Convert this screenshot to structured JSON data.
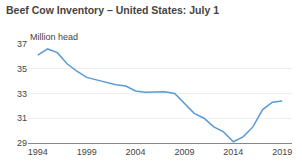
{
  "chart_data": {
    "type": "line",
    "title": "Beef Cow Inventory – United States: July 1",
    "ylabel": "Million head",
    "x": [
      1994,
      1995,
      1996,
      1997,
      1998,
      1999,
      2000,
      2001,
      2002,
      2003,
      2004,
      2005,
      2006,
      2007,
      2008,
      2009,
      2010,
      2011,
      2012,
      2013,
      2014,
      2015,
      2016,
      2017,
      2018,
      2019
    ],
    "values": [
      36.1,
      36.6,
      36.3,
      35.4,
      34.8,
      34.3,
      34.1,
      33.9,
      33.7,
      33.6,
      33.2,
      33.1,
      33.15,
      33.15,
      33.0,
      32.2,
      31.4,
      31.0,
      30.3,
      29.9,
      29.1,
      29.5,
      30.3,
      31.7,
      32.3,
      32.4
    ],
    "color": "#5b9bd5",
    "xlim": [
      1993,
      2020
    ],
    "ylim": [
      29,
      37
    ],
    "xticks": [
      1994,
      1999,
      2004,
      2009,
      2014,
      2019
    ],
    "yticks": [
      29,
      31,
      33,
      35,
      37
    ],
    "grid": true
  }
}
